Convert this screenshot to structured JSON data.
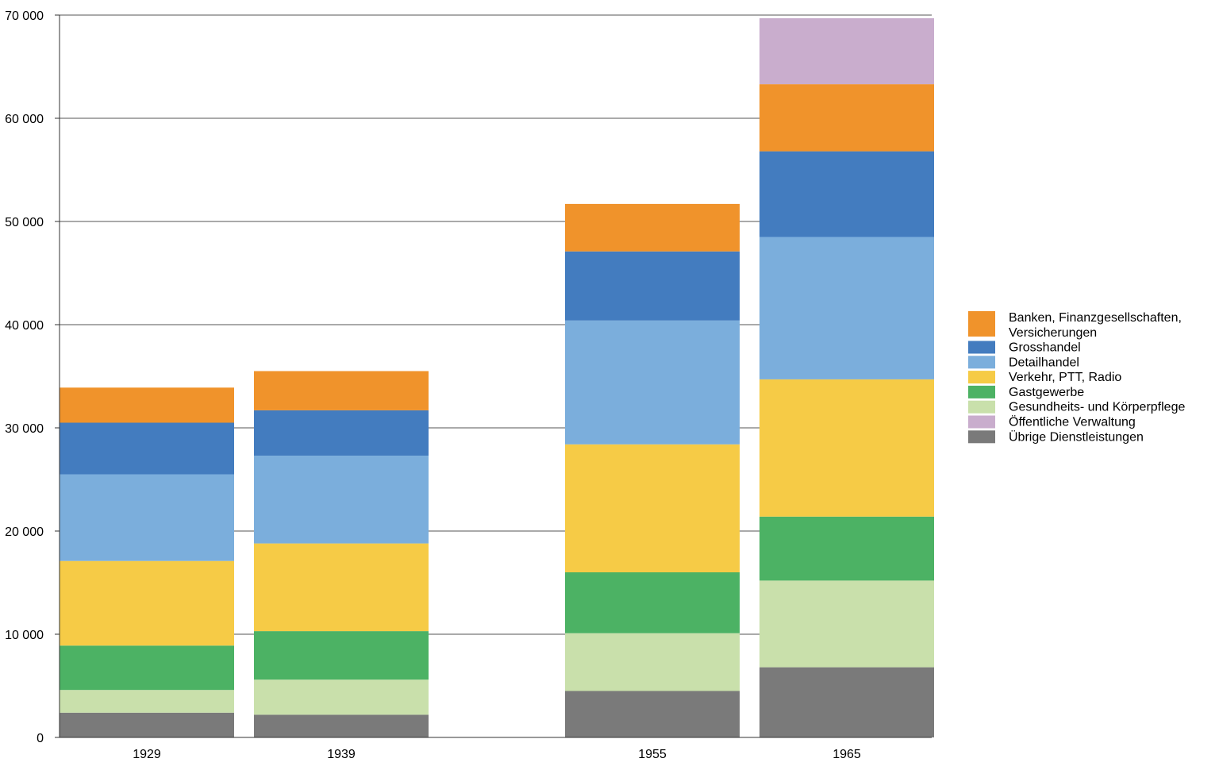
{
  "chart_data": {
    "type": "bar",
    "stacked": true,
    "title": "",
    "xlabel": "",
    "ylabel": "",
    "ylim": [
      0,
      70000
    ],
    "yticks": [
      0,
      10000,
      20000,
      30000,
      40000,
      50000,
      60000,
      70000
    ],
    "ytick_labels": [
      "0",
      "10 000",
      "20 000",
      "30 000",
      "40 000",
      "50 000",
      "60 000",
      "70 000"
    ],
    "grid": true,
    "legend_position": "right",
    "categories": [
      "1929",
      "1939",
      "1955",
      "1965"
    ],
    "series": [
      {
        "name": "Übrige Dienstleistungen",
        "color": "#7A7A7A",
        "values": [
          2400,
          2200,
          4500,
          6800
        ]
      },
      {
        "name": "Gesundheits- und Körperpflege",
        "color": "#C9E0AB",
        "values": [
          2200,
          3400,
          5600,
          8400
        ]
      },
      {
        "name": "Gastgewerbe",
        "color": "#4CB264",
        "values": [
          4300,
          4700,
          5900,
          6200
        ]
      },
      {
        "name": "Verkehr, PTT, Radio",
        "color": "#F6CB46",
        "values": [
          8200,
          8500,
          12400,
          13300
        ]
      },
      {
        "name": "Detailhandel",
        "color": "#7BAEDC",
        "values": [
          8400,
          8500,
          12000,
          13800
        ]
      },
      {
        "name": "Grosshandel",
        "color": "#437CBF",
        "values": [
          5000,
          4400,
          6700,
          8300
        ]
      },
      {
        "name": "Banken, Finanzgesellschaften, Versicherungen",
        "color": "#F0932B",
        "values": [
          3400,
          3800,
          4600,
          6500
        ]
      },
      {
        "name": "Öffentliche Verwaltung",
        "color": "#C9ADCD",
        "values": [
          0,
          0,
          0,
          6400
        ]
      }
    ],
    "legend": [
      {
        "label": [
          "Banken, Finanzgesellschaften,",
          "Versicherungen"
        ],
        "color": "#F0932B"
      },
      {
        "label": [
          "Grosshandel"
        ],
        "color": "#437CBF"
      },
      {
        "label": [
          "Detailhandel"
        ],
        "color": "#7BAEDC"
      },
      {
        "label": [
          "Verkehr, PTT, Radio"
        ],
        "color": "#F6CB46"
      },
      {
        "label": [
          "Gastgewerbe"
        ],
        "color": "#4CB264"
      },
      {
        "label": [
          "Gesundheits- und Körperpflege"
        ],
        "color": "#C9E0AB"
      },
      {
        "label": [
          "Öffentliche Verwaltung"
        ],
        "color": "#C9ADCD"
      },
      {
        "label": [
          "Übrige Dienstleistungen"
        ],
        "color": "#7A7A7A"
      }
    ]
  }
}
